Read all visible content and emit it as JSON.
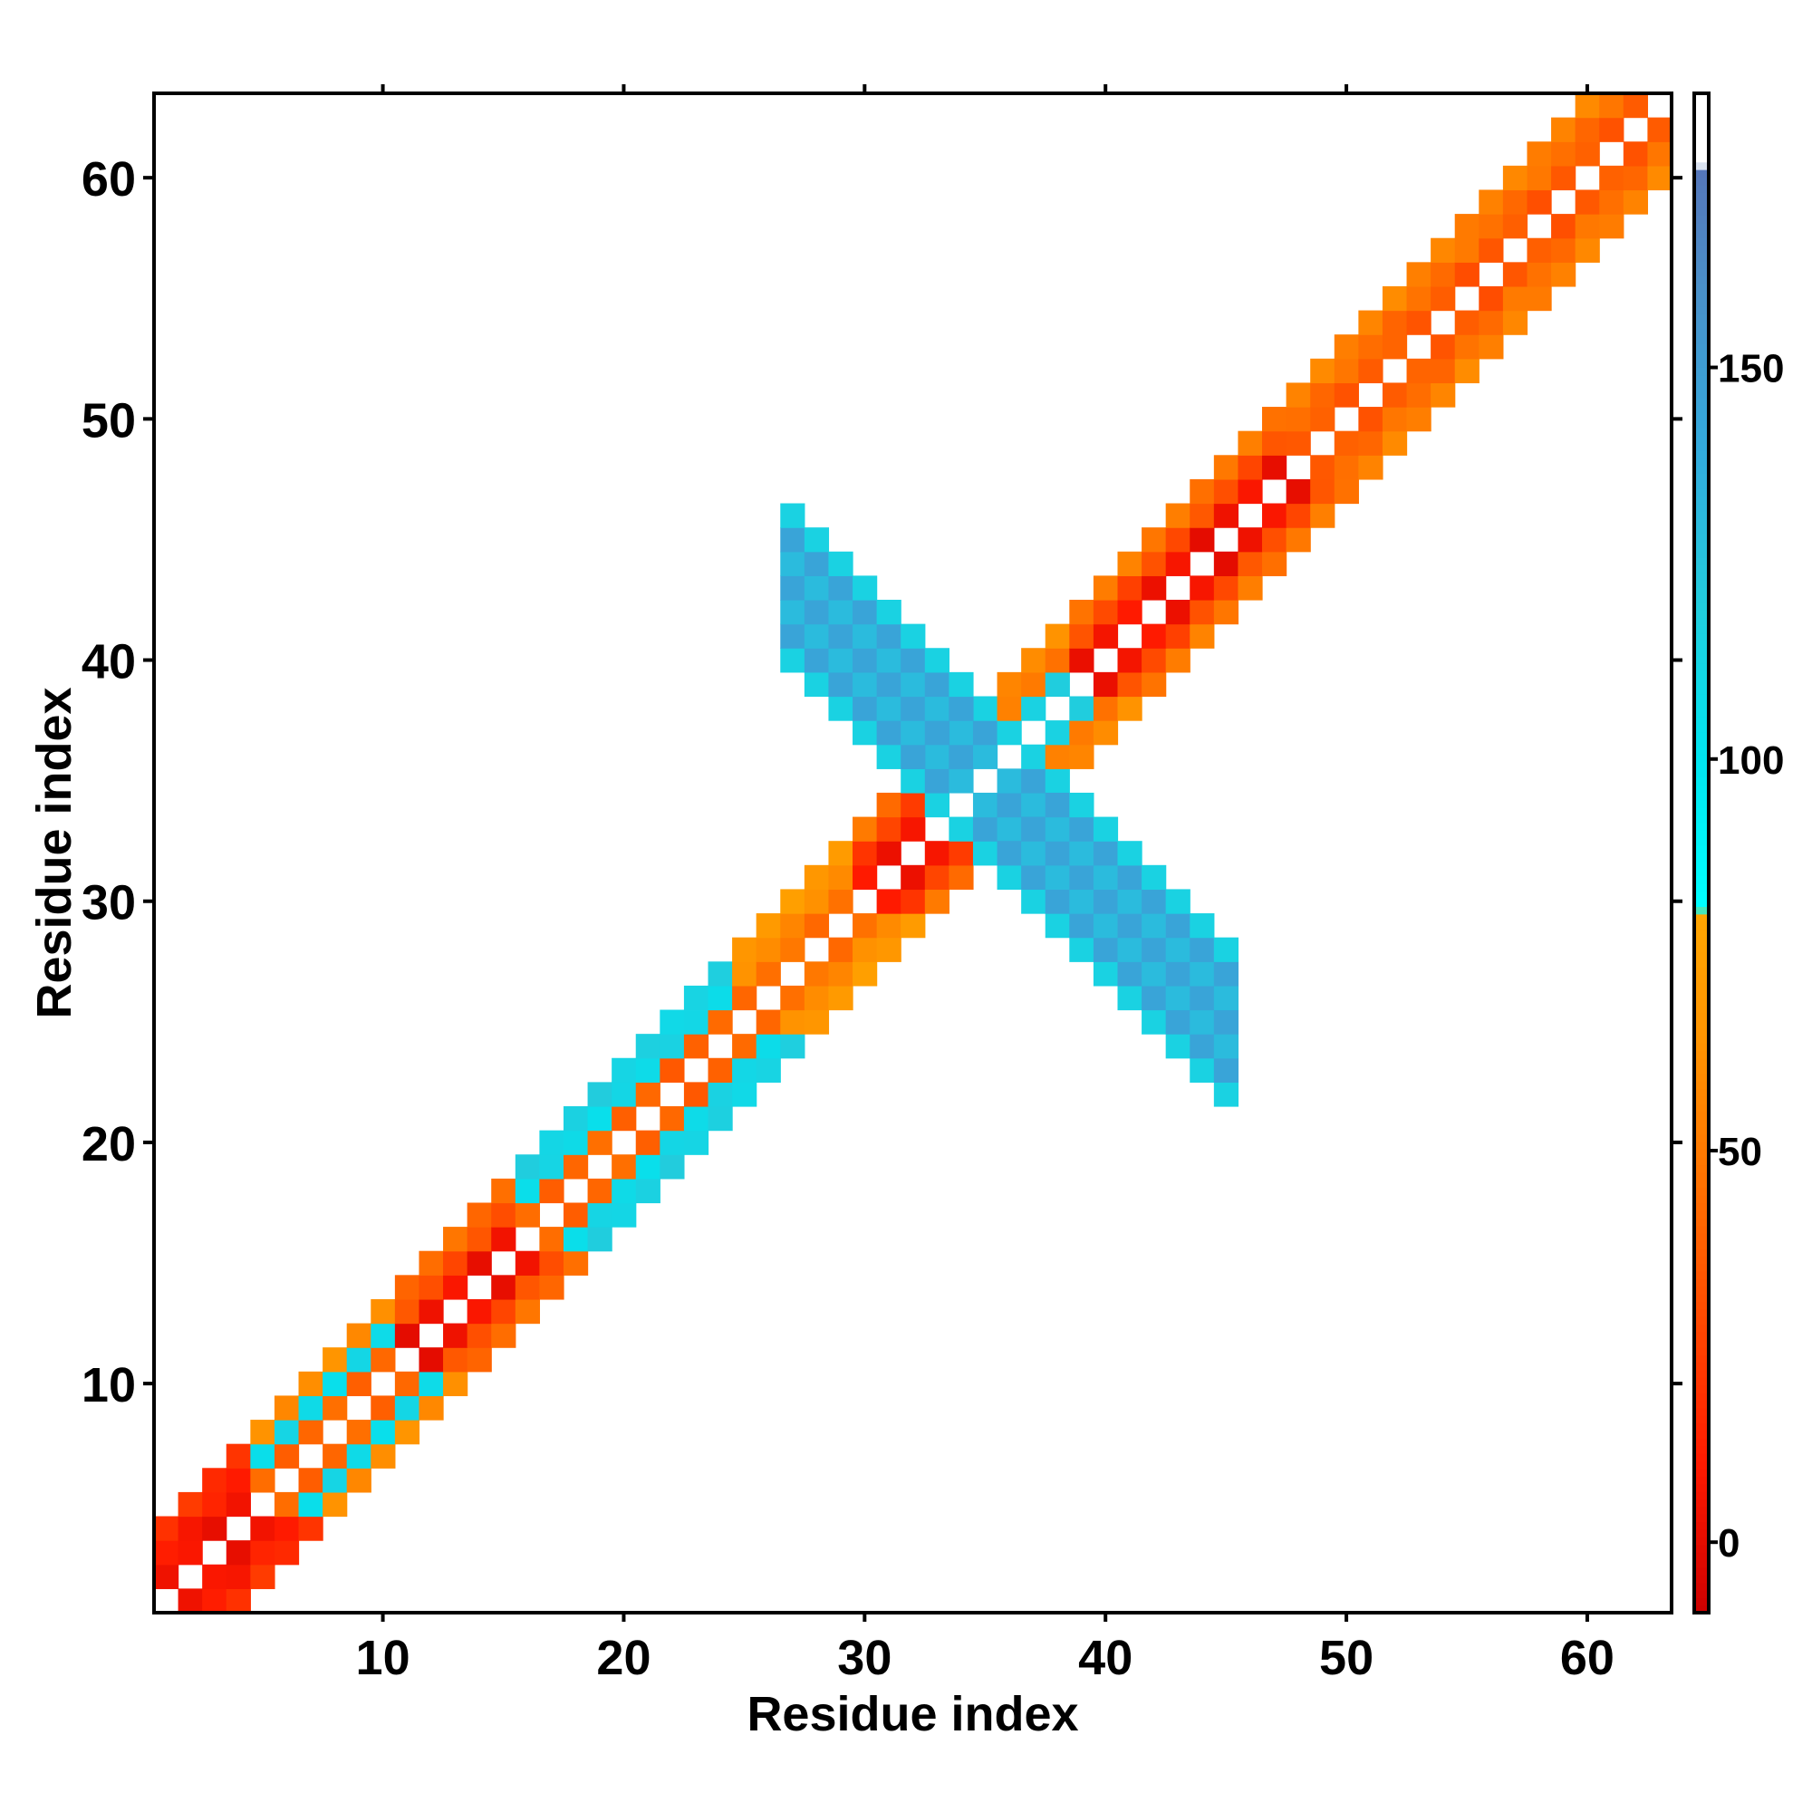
{
  "chart_data": {
    "type": "heatmap",
    "title": "",
    "xlabel": "Residue index",
    "ylabel": "Residue index",
    "xlim": [
      0.5,
      63.5
    ],
    "ylim": [
      0.5,
      63.5
    ],
    "x_ticks": [
      10,
      20,
      30,
      40,
      50,
      60
    ],
    "y_ticks": [
      10,
      20,
      30,
      40,
      50,
      60
    ],
    "grid": false,
    "legend": "colorbar-right",
    "colorbar": {
      "range": [
        -9,
        185
      ],
      "ticks": [
        0,
        50,
        100,
        150
      ],
      "stops": [
        {
          "value": -9,
          "color": "#cc0000"
        },
        {
          "value": 10,
          "color": "#ff1a00"
        },
        {
          "value": 30,
          "color": "#ff4d00"
        },
        {
          "value": 50,
          "color": "#ff7a00"
        },
        {
          "value": 65,
          "color": "#ff9500"
        },
        {
          "value": 80,
          "color": "#ffa500"
        },
        {
          "value": 81,
          "color": "#00ffff"
        },
        {
          "value": 100,
          "color": "#00e5f0"
        },
        {
          "value": 120,
          "color": "#22ccdd"
        },
        {
          "value": 140,
          "color": "#33aadd"
        },
        {
          "value": 160,
          "color": "#4a90c8"
        },
        {
          "value": 175,
          "color": "#5577bb"
        },
        {
          "value": 176,
          "color": "#ffffff"
        },
        {
          "value": 185,
          "color": "#ffffff"
        }
      ]
    },
    "diagonal_band": [
      {
        "from": 1,
        "to": 5,
        "d1": 5,
        "d2": 10,
        "d3": 20
      },
      {
        "from": 5,
        "to": 11,
        "d1": 40,
        "d2": 110,
        "d3": 60
      },
      {
        "from": 11,
        "to": 16,
        "d1": 5,
        "d2": 30,
        "d3": 45
      },
      {
        "from": 16,
        "to": 25,
        "d1": 40,
        "d2": 110,
        "d3": 115
      },
      {
        "from": 25,
        "to": 30,
        "d1": 45,
        "d2": 60,
        "d3": 70
      },
      {
        "from": 30,
        "to": 34,
        "d1": 5,
        "d2": 25,
        "d3": 45
      },
      {
        "from": 34,
        "to": 39,
        "d1": 115,
        "d2": 50,
        "d3": 60
      },
      {
        "from": 39,
        "to": 48,
        "d1": 5,
        "d2": 30,
        "d3": 50
      },
      {
        "from": 48,
        "to": 64,
        "d1": 35,
        "d2": 45,
        "d3": 55
      }
    ],
    "antidiagonal_arms": [
      {
        "name": "",
        "x_from": 27,
        "x_to": 35,
        "y_center_at": 35,
        "width": 3,
        "base": 130,
        "edge": 115
      },
      {
        "name": "",
        "x_from": 35,
        "x_to": 45,
        "y_center_at": 35,
        "width": 3,
        "base": 130,
        "edge": 115
      }
    ]
  }
}
